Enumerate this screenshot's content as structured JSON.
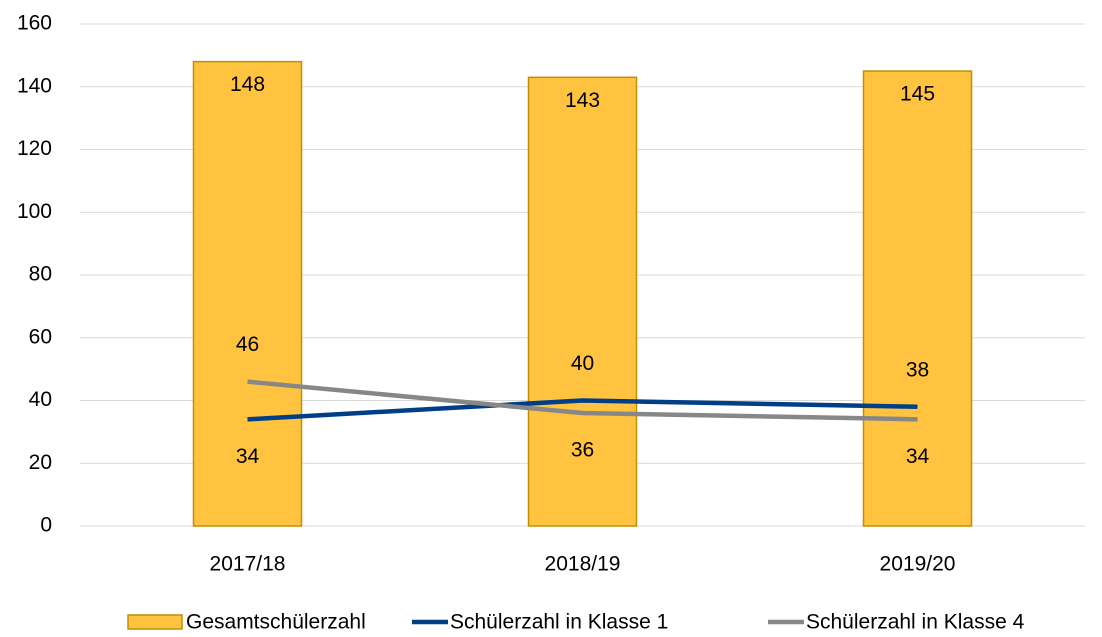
{
  "chart_data": {
    "type": "combo",
    "categories": [
      "2017/18",
      "2018/19",
      "2019/20"
    ],
    "series": [
      {
        "name": "Gesamtschülerzahl",
        "type": "bar",
        "color": "#ffc340",
        "values": [
          148,
          143,
          145
        ]
      },
      {
        "name": "Schülerzahl in Klasse 1",
        "type": "line",
        "color": "#003f87",
        "values": [
          34,
          40,
          38
        ]
      },
      {
        "name": "Schülerzahl in Klasse 4",
        "type": "line",
        "color": "#878787",
        "values": [
          46,
          36,
          34
        ]
      }
    ],
    "ylim": [
      0,
      160
    ],
    "yticks": [
      0,
      20,
      40,
      60,
      80,
      100,
      120,
      140,
      160
    ],
    "grid": true,
    "legend": "bottom"
  }
}
